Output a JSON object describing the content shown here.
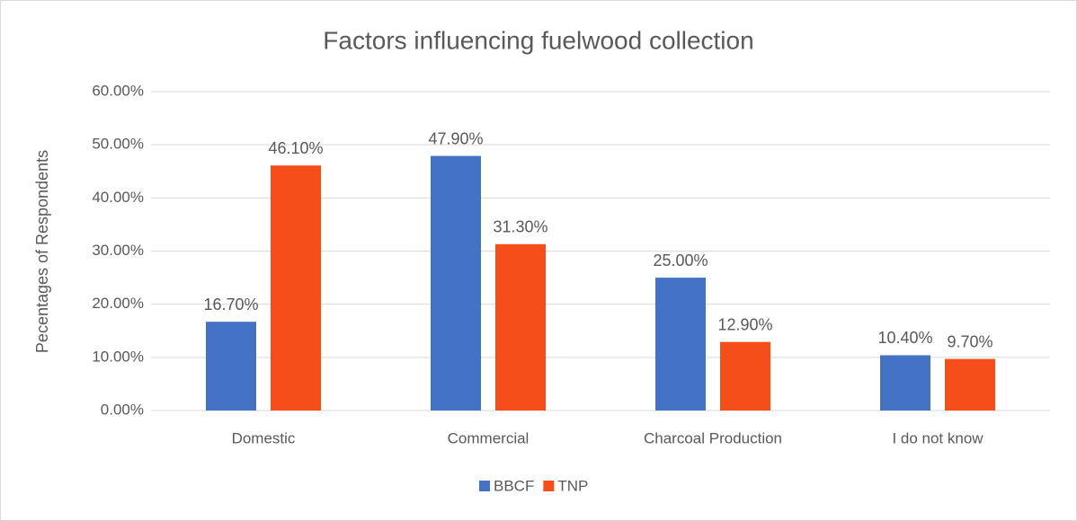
{
  "chart_data": {
    "type": "bar",
    "title": "Factors influencing fuelwood collection",
    "y_label": "Pecentages of Respondents",
    "categories": [
      "Domestic",
      "Commercial",
      "Charcoal Production",
      "I do not know"
    ],
    "series": [
      {
        "name": "BBCF",
        "color": "#4472c4",
        "values": [
          16.7,
          47.9,
          25.0,
          10.4
        ],
        "value_labels": [
          "16.70%",
          "47.90%",
          "25.00%",
          "10.40%"
        ]
      },
      {
        "name": "TNP",
        "color": "#f54e1b",
        "values": [
          46.1,
          31.3,
          12.9,
          9.7
        ],
        "value_labels": [
          "46.10%",
          "31.30%",
          "12.90%",
          "9.70%"
        ]
      }
    ],
    "ylim": [
      0,
      60
    ],
    "yticks": [
      {
        "value": 0,
        "label": "0.00%"
      },
      {
        "value": 10,
        "label": "10.00%"
      },
      {
        "value": 20,
        "label": "20.00%"
      },
      {
        "value": 30,
        "label": "30.00%"
      },
      {
        "value": 40,
        "label": "40.00%"
      },
      {
        "value": 50,
        "label": "50.00%"
      },
      {
        "value": 60,
        "label": "60.00%"
      }
    ],
    "grid": true,
    "legend": "bottom"
  }
}
